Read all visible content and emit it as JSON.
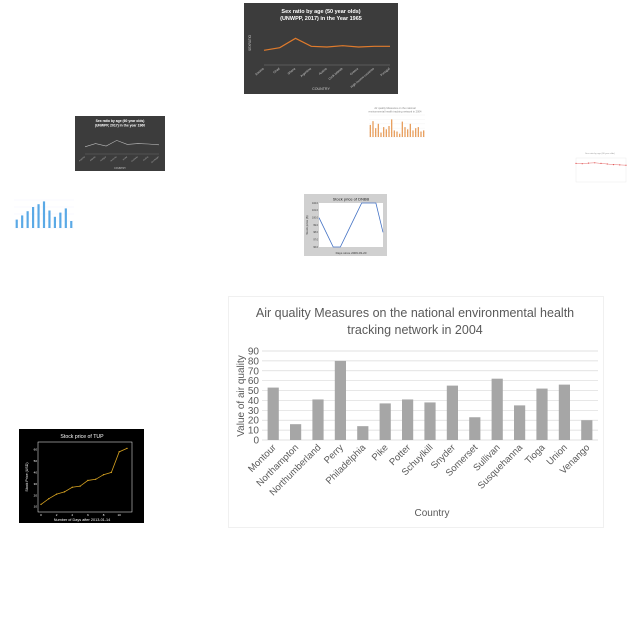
{
  "chart_data": [
    {
      "type": "line",
      "title": "Sex ratio by age (50 year olds) (UNWPP, 2017) in the Year 1965",
      "xlabel": "COUNTRY",
      "ylabel": "SEXRATIO",
      "categories": [
        "Estonia",
        "Chad",
        "Ghana",
        "Argentina",
        "Austria",
        "Cook Islands",
        "Greece",
        "High income countries",
        "Portugal"
      ],
      "values": [
        92,
        96,
        110,
        98,
        97,
        99,
        97,
        98,
        98
      ],
      "ylim": [
        70,
        130
      ],
      "colors": {
        "background": "#3c3c3c",
        "line": "#e07b2c"
      }
    },
    {
      "type": "line",
      "title": "Sex ratio by age (60 year olds) (UNWPP, 2017) in the year 1960",
      "xlabel": "COUNTRY",
      "categories": [
        "Anguilla",
        "Albania",
        "Antigua",
        "Armenia",
        "Aruba",
        "Australia",
        "Austria",
        "Azerbaijan"
      ],
      "values": [
        88,
        96,
        90,
        104,
        94,
        96,
        95,
        93
      ],
      "ylim": [
        70,
        130
      ],
      "colors": {
        "background": "#3c3c3c",
        "line": "#bbbbbb"
      }
    },
    {
      "type": "bar",
      "title": "Air quality Measures on the national environmental health tracking network in 2004",
      "values": [
        55,
        72,
        40,
        60,
        20,
        45,
        35,
        50,
        80,
        30,
        25,
        15,
        70,
        45,
        35,
        60,
        30,
        40,
        45,
        25,
        30
      ],
      "ylim": [
        0,
        100
      ],
      "colors": {
        "bar": "#e8a060"
      }
    },
    {
      "type": "line",
      "values": [
        62,
        61,
        63,
        64,
        62,
        60,
        58,
        57,
        56
      ],
      "ylim": [
        0,
        80
      ],
      "colors": {
        "line": "#e05050"
      }
    },
    {
      "type": "bar",
      "values": [
        12,
        18,
        24,
        30,
        34,
        38,
        25,
        16,
        22,
        28,
        10
      ],
      "ylim": [
        0,
        40
      ],
      "colors": {
        "bar": "#5aa9e6"
      }
    },
    {
      "type": "line",
      "title": "Stock price of DNBB",
      "xlabel": "Days since 2009-03-20",
      "ylabel": "Stock price ($)",
      "x": [
        0,
        1,
        2,
        3,
        4,
        5,
        6,
        7,
        8,
        9
      ],
      "values": [
        100.0,
        98.0,
        96.0,
        96.0,
        98.0,
        100.0,
        102.0,
        102.0,
        102.0,
        98.0
      ],
      "yticks": [
        "96.0",
        "97.0",
        "98.0",
        "99.0",
        "100.0",
        "101.0",
        "102.0"
      ],
      "ylim": [
        96,
        102
      ],
      "colors": {
        "line": "#4472c4"
      }
    },
    {
      "type": "bar",
      "title": "Air quality Measures on the national environmental health tracking network in 2004",
      "xlabel": "Country",
      "ylabel": "Value of air quality",
      "categories": [
        "Montour",
        "Northampton",
        "Northumberland",
        "Perry",
        "Philadelphia",
        "Pike",
        "Potter",
        "Schuylkill",
        "Snyder",
        "Somerset",
        "Sullivan",
        "Susquehanna",
        "Tioga",
        "Union",
        "Venango"
      ],
      "values": [
        53,
        16,
        41,
        80,
        14,
        37,
        41,
        38,
        55,
        23,
        62,
        35,
        52,
        56,
        20
      ],
      "yticks": [
        0,
        10,
        20,
        30,
        40,
        50,
        60,
        70,
        80,
        90
      ],
      "ylim": [
        0,
        90
      ],
      "colors": {
        "bar": "#a6a6a6",
        "grid": "#d9d9d9",
        "text": "#595959"
      }
    },
    {
      "type": "line",
      "title": "Stock price of TUP",
      "xlabel": "Number of Days after 2013-01-14",
      "ylabel": "Stock Price (USD)",
      "x": [
        0,
        1,
        2,
        3,
        4,
        5,
        6,
        7,
        8,
        9,
        10,
        11
      ],
      "values": [
        12,
        17,
        21,
        23,
        27,
        28,
        33,
        34,
        38,
        40,
        58,
        61
      ],
      "xticks": [
        "0",
        "2",
        "4",
        "6",
        "8",
        "10"
      ],
      "yticks": [
        "10",
        "20",
        "30",
        "40",
        "50",
        "60"
      ],
      "ylim": [
        8,
        64
      ],
      "colors": {
        "background": "#000000",
        "line": "#d4a020"
      }
    }
  ]
}
